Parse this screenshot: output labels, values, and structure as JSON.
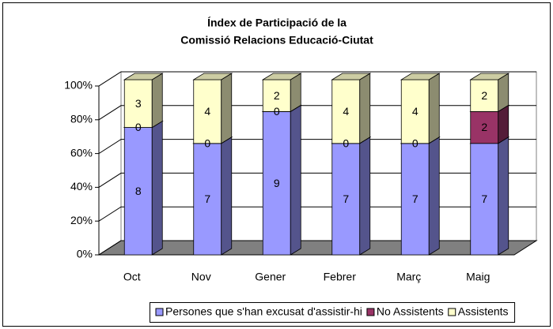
{
  "chart_data": {
    "type": "bar",
    "stacking": "percent",
    "title": [
      "Índex de Participació de la",
      "Comissió Relacions Educació-Ciutat"
    ],
    "categories": [
      "Oct",
      "Nov",
      "Gener",
      "Febrer",
      "Març",
      "Maig"
    ],
    "series": [
      {
        "name": "Persones que s'han excusat d'assistir-hi",
        "color": "#9999ff",
        "values": [
          8,
          7,
          9,
          7,
          7,
          7
        ]
      },
      {
        "name": "No Assistents",
        "color": "#993366",
        "values": [
          0,
          0,
          0,
          0,
          0,
          2
        ]
      },
      {
        "name": "Assistents",
        "color": "#ffffcc",
        "values": [
          3,
          4,
          2,
          4,
          4,
          2
        ]
      }
    ],
    "ylim": [
      0,
      100
    ],
    "yticks": [
      {
        "value": 0,
        "label": "0%"
      },
      {
        "value": 20,
        "label": "20%"
      },
      {
        "value": 40,
        "label": "40%"
      },
      {
        "value": 60,
        "label": "60%"
      },
      {
        "value": 80,
        "label": "80%"
      },
      {
        "value": 100,
        "label": "100%"
      }
    ],
    "grid": true,
    "legend": "bottom"
  }
}
